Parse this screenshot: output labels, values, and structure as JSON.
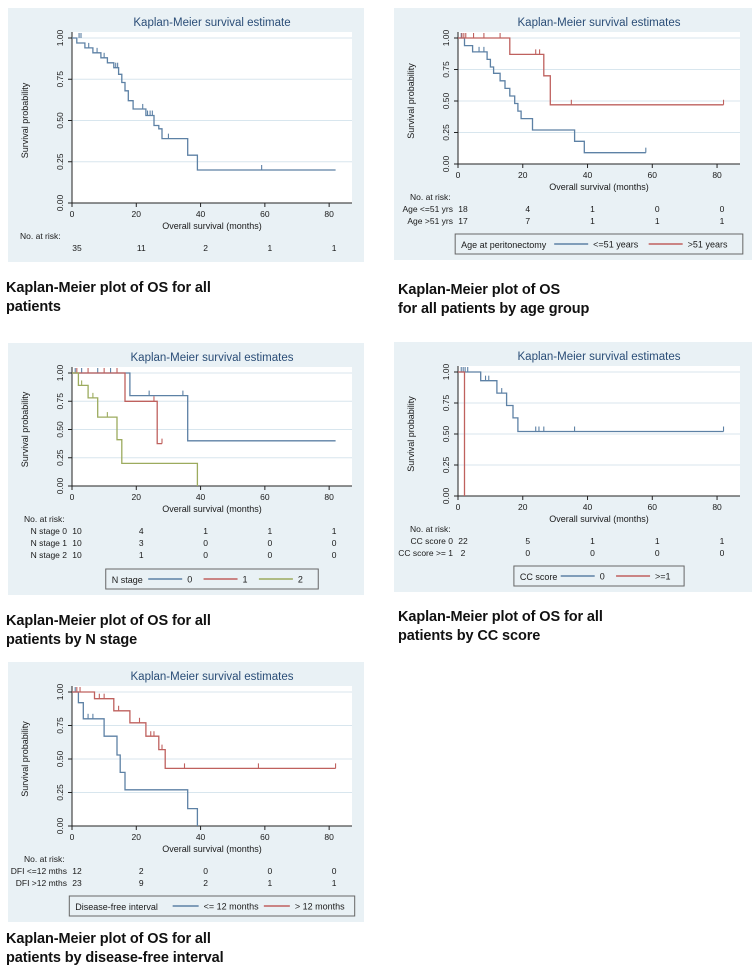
{
  "colors": {
    "page_bg": "#ffffff",
    "panel_bg": "#e9f1f5",
    "plot_bg": "#ffffff",
    "grid": "#d8e6ee",
    "axis": "#222222",
    "text": "#1a1a1a",
    "title": "#2a4d77",
    "blue": "#5d81a5",
    "red": "#bf615e",
    "green": "#9cab5e",
    "legend_border": "#666666"
  },
  "chart_data": [
    {
      "type": "km-step",
      "name": "os-all-patients",
      "title": "Kaplan-Meier survival estimate",
      "xlabel": "Overall survival (months)",
      "ylabel": "Survival probability",
      "xticks": [
        0,
        20,
        40,
        60,
        80
      ],
      "ytick_labels": [
        "0.00",
        "0.25",
        "0.50",
        "0.75",
        "1.00"
      ],
      "xlim": [
        0,
        84
      ],
      "ylim": [
        0,
        1
      ],
      "xmax": 84,
      "risk_header": "No. at risk:",
      "risk_rows": [
        {
          "label": "",
          "counts": [
            "35",
            "11",
            "2",
            "1",
            "1"
          ]
        }
      ],
      "legend": null,
      "series": [
        {
          "name": "All patients",
          "color_key": "blue",
          "steps": [
            [
              0,
              1.0
            ],
            [
              1.5,
              0.97
            ],
            [
              4,
              0.94
            ],
            [
              6.5,
              0.91
            ],
            [
              9,
              0.88
            ],
            [
              11,
              0.85
            ],
            [
              13,
              0.82
            ],
            [
              14.5,
              0.78
            ],
            [
              15.5,
              0.73
            ],
            [
              16.5,
              0.68
            ],
            [
              17.5,
              0.62
            ],
            [
              19,
              0.57
            ],
            [
              23,
              0.53
            ],
            [
              25.5,
              0.47
            ],
            [
              27,
              0.45
            ],
            [
              28,
              0.39
            ],
            [
              36,
              0.29
            ],
            [
              39,
              0.2
            ],
            [
              82,
              0.2
            ]
          ],
          "censors": [
            [
              2.2,
              1.0
            ],
            [
              2.8,
              1.0
            ],
            [
              5.2,
              0.94
            ],
            [
              7.8,
              0.91
            ],
            [
              10,
              0.88
            ],
            [
              13.6,
              0.82
            ],
            [
              14.2,
              0.82
            ],
            [
              22,
              0.57
            ],
            [
              23.5,
              0.53
            ],
            [
              24.3,
              0.53
            ],
            [
              25,
              0.53
            ],
            [
              30,
              0.39
            ],
            [
              59,
              0.2
            ]
          ]
        }
      ],
      "caption": [
        "Kaplan-Meier plot of OS for all",
        "patients"
      ]
    },
    {
      "type": "km-step",
      "name": "os-by-age-group",
      "title": "Kaplan-Meier survival estimates",
      "xlabel": "Overall survival (months)",
      "ylabel": "Survival probability",
      "xticks": [
        0,
        20,
        40,
        60,
        80
      ],
      "ytick_labels": [
        "0.00",
        "0.25",
        "0.50",
        "0.75",
        "1.00"
      ],
      "xlim": [
        0,
        84
      ],
      "ylim": [
        0,
        1
      ],
      "xmax": 84,
      "risk_header": "No. at risk:",
      "risk_rows": [
        {
          "label": "Age <=51 yrs",
          "counts": [
            "18",
            "4",
            "1",
            "0",
            "0"
          ]
        },
        {
          "label": "Age >51 yrs",
          "counts": [
            "17",
            "7",
            "1",
            "1",
            "1"
          ]
        }
      ],
      "legend": {
        "title": "Age at peritonectomy",
        "items": [
          {
            "label": "<=51 years",
            "color_key": "blue"
          },
          {
            "label": ">51 years",
            "color_key": "red"
          }
        ]
      },
      "series": [
        {
          "name": "<=51 years",
          "color_key": "blue",
          "steps": [
            [
              0,
              1
            ],
            [
              2,
              0.94
            ],
            [
              4.5,
              0.89
            ],
            [
              9,
              0.83
            ],
            [
              10,
              0.77
            ],
            [
              11,
              0.72
            ],
            [
              13,
              0.66
            ],
            [
              14.5,
              0.6
            ],
            [
              16,
              0.54
            ],
            [
              17.5,
              0.48
            ],
            [
              18.5,
              0.42
            ],
            [
              19.5,
              0.36
            ],
            [
              23,
              0.27
            ],
            [
              36,
              0.18
            ],
            [
              39,
              0.09
            ],
            [
              58,
              0.09
            ]
          ],
          "censors": [
            [
              1,
              1
            ],
            [
              6.5,
              0.89
            ],
            [
              8,
              0.89
            ],
            [
              58,
              0.09
            ]
          ]
        },
        {
          "name": ">51 years",
          "color_key": "red",
          "steps": [
            [
              0,
              1
            ],
            [
              16,
              0.87
            ],
            [
              26.5,
              0.7
            ],
            [
              28.5,
              0.47
            ],
            [
              82,
              0.47
            ]
          ],
          "censors": [
            [
              1.2,
              1
            ],
            [
              1.8,
              1
            ],
            [
              2.4,
              1
            ],
            [
              4.8,
              1
            ],
            [
              8,
              1
            ],
            [
              13,
              1
            ],
            [
              24,
              0.87
            ],
            [
              25.2,
              0.87
            ],
            [
              35,
              0.47
            ],
            [
              82,
              0.47
            ]
          ]
        }
      ],
      "caption": [
        "Kaplan-Meier plot of OS",
        "for all patients by age group"
      ]
    },
    {
      "type": "km-step",
      "name": "os-by-n-stage",
      "title": "Kaplan-Meier survival estimates",
      "xlabel": "Overall survival (months)",
      "ylabel": "Survival probability",
      "xticks": [
        0,
        20,
        40,
        60,
        80
      ],
      "ytick_labels": [
        "0.00",
        "0.25",
        "0.50",
        "0.75",
        "1.00"
      ],
      "xlim": [
        0,
        84
      ],
      "ylim": [
        0,
        1
      ],
      "xmax": 84,
      "risk_header": "No. at risk:",
      "risk_rows": [
        {
          "label": "N stage 0",
          "counts": [
            "10",
            "4",
            "1",
            "1",
            "1"
          ]
        },
        {
          "label": "N stage 1",
          "counts": [
            "10",
            "3",
            "0",
            "0",
            "0"
          ]
        },
        {
          "label": "N stage 2",
          "counts": [
            "10",
            "1",
            "0",
            "0",
            "0"
          ]
        }
      ],
      "legend": {
        "title": "N stage",
        "items": [
          {
            "label": "0",
            "color_key": "blue"
          },
          {
            "label": "1",
            "color_key": "red"
          },
          {
            "label": "2",
            "color_key": "green"
          }
        ]
      },
      "series": [
        {
          "name": "N stage 0",
          "color_key": "blue",
          "steps": [
            [
              0,
              1
            ],
            [
              18,
              0.8
            ],
            [
              36,
              0.4
            ],
            [
              82,
              0.4
            ]
          ],
          "censors": [
            [
              1,
              1
            ],
            [
              3,
              1
            ],
            [
              8,
              1
            ],
            [
              12,
              1
            ],
            [
              24,
              0.8
            ],
            [
              34.5,
              0.8
            ]
          ]
        },
        {
          "name": "N stage 1",
          "color_key": "red",
          "steps": [
            [
              0,
              1
            ],
            [
              16.5,
              0.75
            ],
            [
              26.5,
              0.375
            ],
            [
              28,
              0.375
            ]
          ],
          "censors": [
            [
              1.5,
              1
            ],
            [
              5,
              1
            ],
            [
              10,
              1
            ],
            [
              14,
              1
            ],
            [
              25.5,
              0.75
            ],
            [
              28,
              0.375
            ]
          ]
        },
        {
          "name": "N stage 2",
          "color_key": "green",
          "steps": [
            [
              0,
              1
            ],
            [
              2,
              0.89
            ],
            [
              5,
              0.78
            ],
            [
              8,
              0.61
            ],
            [
              14,
              0.41
            ],
            [
              15.5,
              0.2
            ],
            [
              39,
              0
            ]
          ],
          "censors": [
            [
              3,
              0.89
            ],
            [
              6.5,
              0.78
            ],
            [
              11,
              0.61
            ]
          ]
        }
      ],
      "caption": [
        "Kaplan-Meier plot of OS for all",
        "patients by N stage"
      ]
    },
    {
      "type": "km-step",
      "name": "os-by-cc-score",
      "title": "Kaplan-Meier survival estimates",
      "xlabel": "Overall survival (months)",
      "ylabel": "Survival probability",
      "xticks": [
        0,
        20,
        40,
        60,
        80
      ],
      "ytick_labels": [
        "0.00",
        "0.25",
        "0.50",
        "0.75",
        "1.00"
      ],
      "xlim": [
        0,
        84
      ],
      "ylim": [
        0,
        1
      ],
      "xmax": 84,
      "risk_header": "No. at risk:",
      "risk_rows": [
        {
          "label": "CC score 0",
          "counts": [
            "22",
            "5",
            "1",
            "1",
            "1"
          ]
        },
        {
          "label": "CC score >= 1",
          "counts": [
            "2",
            "0",
            "0",
            "0",
            "0"
          ]
        }
      ],
      "legend": {
        "title": "CC score",
        "items": [
          {
            "label": "0",
            "color_key": "blue"
          },
          {
            "label": ">=1",
            "color_key": "red"
          }
        ]
      },
      "series": [
        {
          "name": "CC score 0",
          "color_key": "blue",
          "steps": [
            [
              0,
              1
            ],
            [
              7,
              0.93
            ],
            [
              12,
              0.83
            ],
            [
              15,
              0.73
            ],
            [
              17,
              0.63
            ],
            [
              18.5,
              0.52
            ],
            [
              82,
              0.52
            ]
          ],
          "censors": [
            [
              1,
              1
            ],
            [
              1.6,
              1
            ],
            [
              2.2,
              1
            ],
            [
              3,
              1
            ],
            [
              8.5,
              0.93
            ],
            [
              9.5,
              0.93
            ],
            [
              13.5,
              0.83
            ],
            [
              24,
              0.52
            ],
            [
              25,
              0.52
            ],
            [
              26.5,
              0.52
            ],
            [
              36,
              0.52
            ],
            [
              82,
              0.52
            ]
          ]
        },
        {
          "name": "CC score >= 1",
          "color_key": "red",
          "steps": [
            [
              0,
              1
            ],
            [
              2,
              0
            ]
          ],
          "censors": []
        }
      ],
      "caption": [
        "Kaplan-Meier plot of OS for all",
        "patients by CC score"
      ]
    },
    {
      "type": "km-step",
      "name": "os-by-disease-free-interval",
      "title": "Kaplan-Meier survival estimates",
      "xlabel": "Overall survival (months)",
      "ylabel": "Survival probability",
      "xticks": [
        0,
        20,
        40,
        60,
        80
      ],
      "ytick_labels": [
        "0.00",
        "0.25",
        "0.50",
        "0.75",
        "1.00"
      ],
      "xlim": [
        0,
        84
      ],
      "ylim": [
        0,
        1
      ],
      "xmax": 84,
      "risk_header": "No. at risk:",
      "risk_rows": [
        {
          "label": "DFI <=12 mths",
          "counts": [
            "12",
            "2",
            "0",
            "0",
            "0"
          ]
        },
        {
          "label": "DFI >12 mths",
          "counts": [
            "23",
            "9",
            "2",
            "1",
            "1"
          ]
        }
      ],
      "legend": {
        "title": "Disease-free interval",
        "items": [
          {
            "label": "<= 12 months",
            "color_key": "blue"
          },
          {
            "label": "> 12 months",
            "color_key": "red"
          }
        ]
      },
      "series": [
        {
          "name": "DFI <=12 months",
          "color_key": "blue",
          "steps": [
            [
              0,
              1
            ],
            [
              2,
              0.92
            ],
            [
              3.5,
              0.8
            ],
            [
              10,
              0.67
            ],
            [
              14,
              0.53
            ],
            [
              15,
              0.4
            ],
            [
              16.5,
              0.27
            ],
            [
              36,
              0.13
            ],
            [
              39,
              0
            ]
          ],
          "censors": [
            [
              1,
              1
            ],
            [
              5,
              0.8
            ],
            [
              6.5,
              0.8
            ]
          ]
        },
        {
          "name": "DFI >12 months",
          "color_key": "red",
          "steps": [
            [
              0,
              1
            ],
            [
              7,
              0.95
            ],
            [
              13,
              0.86
            ],
            [
              18,
              0.77
            ],
            [
              23,
              0.67
            ],
            [
              27,
              0.57
            ],
            [
              29,
              0.43
            ],
            [
              82,
              0.43
            ]
          ],
          "censors": [
            [
              1.5,
              1
            ],
            [
              2.5,
              1
            ],
            [
              8.5,
              0.95
            ],
            [
              10,
              0.95
            ],
            [
              14.5,
              0.86
            ],
            [
              21,
              0.77
            ],
            [
              24.5,
              0.67
            ],
            [
              25.5,
              0.67
            ],
            [
              28,
              0.57
            ],
            [
              35,
              0.43
            ],
            [
              58,
              0.43
            ],
            [
              82,
              0.43
            ]
          ]
        }
      ],
      "caption": [
        "Kaplan-Meier plot of OS for all",
        "patients by disease-free interval"
      ]
    }
  ]
}
